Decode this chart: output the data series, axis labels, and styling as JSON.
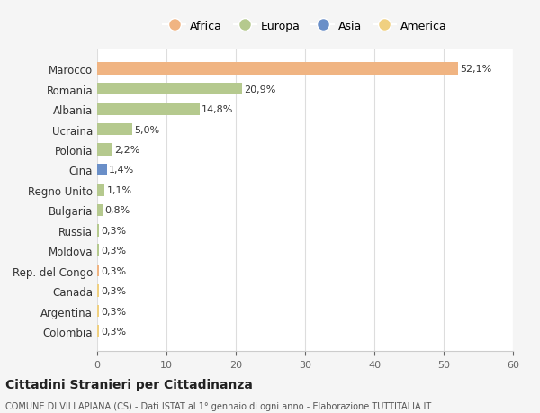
{
  "countries": [
    "Marocco",
    "Romania",
    "Albania",
    "Ucraina",
    "Polonia",
    "Cina",
    "Regno Unito",
    "Bulgaria",
    "Russia",
    "Moldova",
    "Rep. del Congo",
    "Canada",
    "Argentina",
    "Colombia"
  ],
  "values": [
    52.1,
    20.9,
    14.8,
    5.0,
    2.2,
    1.4,
    1.1,
    0.8,
    0.3,
    0.3,
    0.3,
    0.3,
    0.3,
    0.3
  ],
  "labels": [
    "52,1%",
    "20,9%",
    "14,8%",
    "5,0%",
    "2,2%",
    "1,4%",
    "1,1%",
    "0,8%",
    "0,3%",
    "0,3%",
    "0,3%",
    "0,3%",
    "0,3%",
    "0,3%"
  ],
  "colors": [
    "#f0b482",
    "#b5c98e",
    "#b5c98e",
    "#b5c98e",
    "#b5c98e",
    "#6a8fc8",
    "#b5c98e",
    "#b5c98e",
    "#b5c98e",
    "#b5c98e",
    "#f0b482",
    "#f0d080",
    "#f0d080",
    "#f0d080"
  ],
  "continent_colors": {
    "Africa": "#f0b482",
    "Europa": "#b5c98e",
    "Asia": "#6a8fc8",
    "America": "#f0d080"
  },
  "legend_labels": [
    "Africa",
    "Europa",
    "Asia",
    "America"
  ],
  "xlim": [
    0,
    60
  ],
  "xticks": [
    0,
    10,
    20,
    30,
    40,
    50,
    60
  ],
  "title": "Cittadini Stranieri per Cittadinanza",
  "subtitle": "COMUNE DI VILLAPIANA (CS) - Dati ISTAT al 1° gennaio di ogni anno - Elaborazione TUTTITALIA.IT",
  "bg_color": "#f5f5f5",
  "bar_bg_color": "#ffffff"
}
